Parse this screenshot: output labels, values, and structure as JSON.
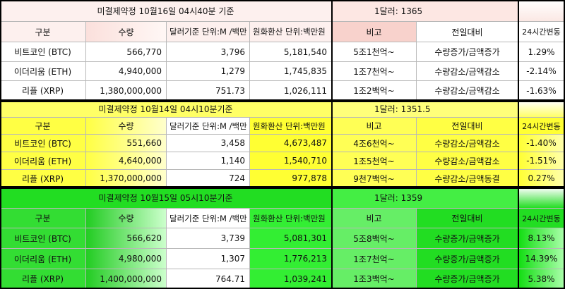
{
  "blocks": [
    {
      "title": "미결제약정 10월16일  04시40분 기준",
      "rate": "1달러: 1365",
      "headers": [
        "구분",
        "수량",
        "달러기준 단위:M /백만",
        "원화환산 단위:백만원",
        "비고",
        "전일대비",
        "24시간변동"
      ],
      "rows": [
        [
          "비트코인 (BTC)",
          "566,770",
          "3,796",
          "5,181,540",
          "5조1천억~",
          "수량증가/금액증가",
          "1.29%"
        ],
        [
          "이더리움 (ETH)",
          "4,940,000",
          "1,279",
          "1,745,835",
          "1조7천억~",
          "수량감소/금액감소",
          "-2.14%"
        ],
        [
          "리플 (XRP)",
          "1,380,000,000",
          "751.73",
          "1,026,111",
          "1조2백억~",
          "수량감소/금액감소",
          "-1.63%"
        ]
      ]
    },
    {
      "title": "미결제약정 10월14일  04시10분기준",
      "rate": "1달러: 1351.5",
      "headers": [
        "구분",
        "수량",
        "달러기준 단위:M /백만",
        "원화환산 단위:백만원",
        "비고",
        "전일대비",
        "24시간변동"
      ],
      "rows": [
        [
          "비트코인 (BTC)",
          "551,660",
          "3,458",
          "4,673,487",
          "4조6천억~",
          "수량감소/금액감소",
          "-1.40%"
        ],
        [
          "이더리움 (ETH)",
          "4,640,000",
          "1,140",
          "1,540,710",
          "1조5천억~",
          "수량감소/금액감소",
          "-1.51%"
        ],
        [
          "리플 (XRP)",
          "1,370,000,000",
          "724",
          "977,878",
          "9천7백억~",
          "수량감소/금액동결",
          "0.27%"
        ]
      ]
    },
    {
      "title": "미결제약정 10월15일  05시10분기준",
      "rate": "1달러: 1359",
      "headers": [
        "구분",
        "수량",
        "달러기준 단위:M /백만",
        "원화환산 단위:백만원",
        "비고",
        "전일대비",
        "24시간변동"
      ],
      "rows": [
        [
          "비트코인 (BTC)",
          "566,620",
          "3,739",
          "5,081,301",
          "5조8백억~",
          "수량증가/금액증가",
          "8.13%"
        ],
        [
          "이더리움 (ETH)",
          "4,980,000",
          "1,307",
          "1,776,213",
          "1조7천억~",
          "수량증가/금액증가",
          "14.39%"
        ],
        [
          "리플 (XRP)",
          "1,400,000,000",
          "764.71",
          "1,039,241",
          "1조3백억~",
          "수량증가/금액증가",
          "5.38%"
        ]
      ]
    }
  ]
}
